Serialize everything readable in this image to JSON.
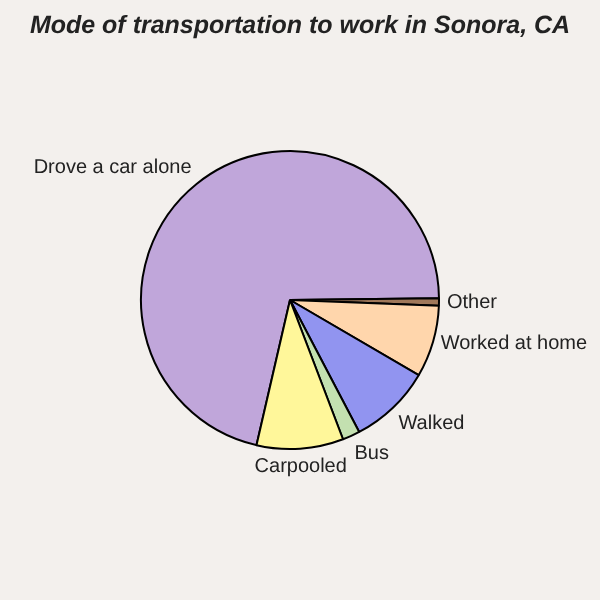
{
  "chart_data": {
    "type": "pie",
    "title": "Mode of transportation to work in Sonora, CA",
    "categories": [
      "Drove a car alone",
      "Other",
      "Worked at home",
      "Walked",
      "Bus",
      "Carpooled"
    ],
    "values": [
      71.2,
      0.8,
      7.8,
      8.9,
      1.9,
      9.4
    ],
    "colors": [
      "#c0a6da",
      "#a0785a",
      "#ffd6ac",
      "#9194f0",
      "#c3e0b0",
      "#fff79a"
    ]
  }
}
